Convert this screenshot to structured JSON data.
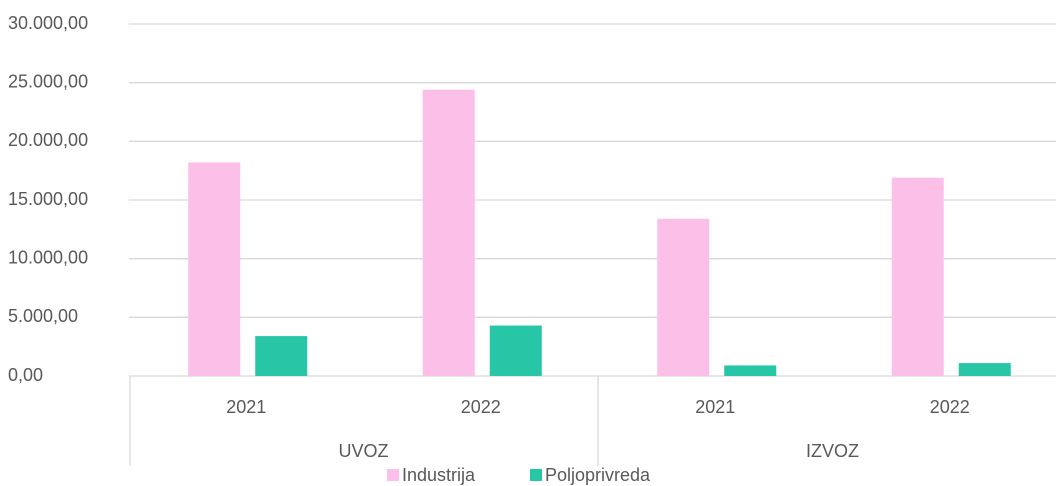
{
  "chart_data": {
    "type": "bar",
    "categories": [
      "2021",
      "2022",
      "2021",
      "2022"
    ],
    "groups": [
      "UVOZ",
      "IZVOZ"
    ],
    "series": [
      {
        "name": "Industrija",
        "color": "#fcc0e8",
        "values": [
          18200,
          24400,
          13400,
          16900
        ]
      },
      {
        "name": "Poljoprivreda",
        "color": "#26c6a6",
        "values": [
          3400,
          4300,
          900,
          1100
        ]
      }
    ],
    "ylim": [
      0,
      30000
    ],
    "yticks": [
      {
        "value": 0,
        "label": "0,00"
      },
      {
        "value": 5000,
        "label": "5.000,00"
      },
      {
        "value": 10000,
        "label": "10.000,00"
      },
      {
        "value": 15000,
        "label": "15.000,00"
      },
      {
        "value": 20000,
        "label": "20.000,00"
      },
      {
        "value": 25000,
        "label": "25.000,00"
      },
      {
        "value": 30000,
        "label": "30.000,00"
      }
    ],
    "grid": true,
    "legend": "bottom"
  }
}
